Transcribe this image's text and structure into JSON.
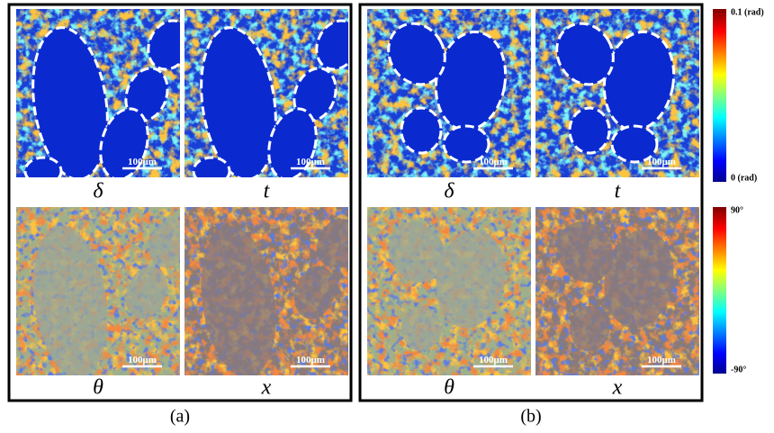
{
  "panels": [
    {
      "caption": "(a)",
      "images": [
        {
          "label": "δ",
          "scale_bar": "100μm"
        },
        {
          "label": "t",
          "scale_bar": "100μm"
        },
        {
          "label": "θ",
          "scale_bar": "100μm"
        },
        {
          "label": "x",
          "scale_bar": "100μm"
        }
      ]
    },
    {
      "caption": "(b)",
      "images": [
        {
          "label": "δ",
          "scale_bar": "100μm"
        },
        {
          "label": "t",
          "scale_bar": "100μm"
        },
        {
          "label": "θ",
          "scale_bar": "100μm"
        },
        {
          "label": "x",
          "scale_bar": "100μm"
        }
      ]
    }
  ],
  "colorbars": [
    {
      "top": "0.1 (rad)",
      "bottom": "0 (rad)"
    },
    {
      "top": "90°",
      "bottom": "-90°"
    }
  ]
}
